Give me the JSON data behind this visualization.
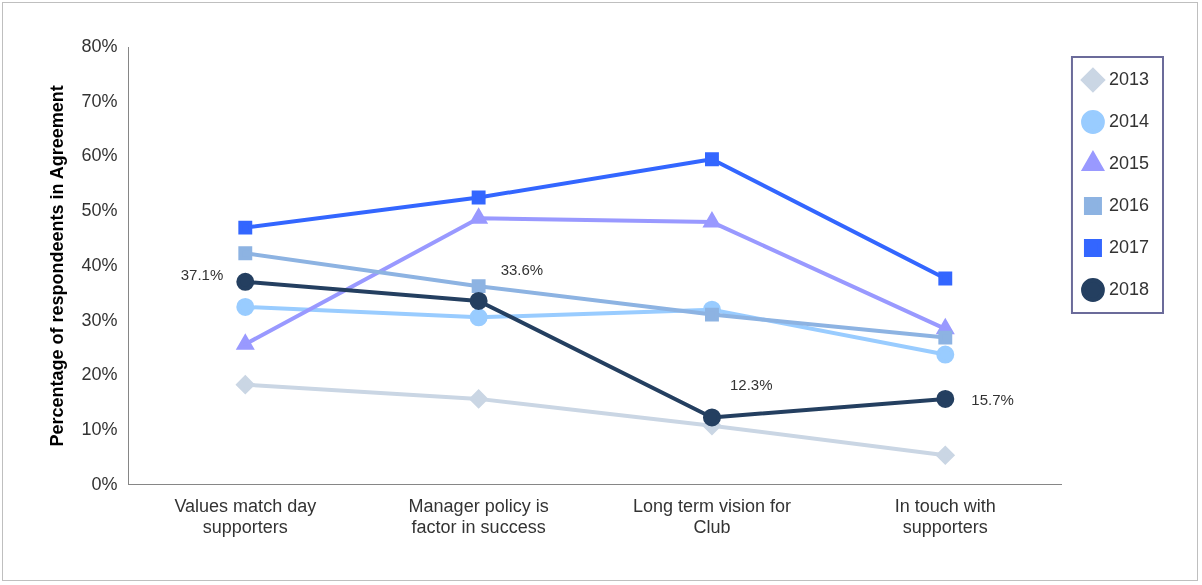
{
  "chart_data": {
    "type": "line",
    "ylabel": "Percentage of respondeents in Agreement",
    "categories": [
      "Values match day supporters",
      "Manager policy is factor in success",
      "Long term vision for Club",
      "In touch with supporters"
    ],
    "ylim": [
      0,
      80
    ],
    "yticks": [
      {
        "value": 0,
        "label": "0%"
      },
      {
        "value": 10,
        "label": "10%"
      },
      {
        "value": 20,
        "label": "20%"
      },
      {
        "value": 30,
        "label": "30%"
      },
      {
        "value": 40,
        "label": "40%"
      },
      {
        "value": 50,
        "label": "50%"
      },
      {
        "value": 60,
        "label": "60%"
      },
      {
        "value": 70,
        "label": "70%"
      },
      {
        "value": 80,
        "label": "80%"
      }
    ],
    "grid": false,
    "legend": "right",
    "series": [
      {
        "name": "2013",
        "color": "#cad6e4",
        "marker": "diamond",
        "values": [
          18.3,
          15.7,
          10.8,
          5.4
        ]
      },
      {
        "name": "2014",
        "color": "#99ccff",
        "marker": "circle",
        "values": [
          32.5,
          30.6,
          32.0,
          23.8
        ]
      },
      {
        "name": "2015",
        "color": "#9999ff",
        "marker": "triangle",
        "values": [
          25.7,
          48.7,
          48.0,
          28.5
        ]
      },
      {
        "name": "2016",
        "color": "#8db3e2",
        "marker": "square",
        "values": [
          42.3,
          36.3,
          31.1,
          26.9
        ]
      },
      {
        "name": "2017",
        "color": "#3366ff",
        "marker": "square",
        "values": [
          47.0,
          52.5,
          59.5,
          37.7
        ]
      },
      {
        "name": "2018",
        "color": "#243f60",
        "marker": "circle",
        "values": [
          37.1,
          33.6,
          12.3,
          15.7
        ],
        "value_labels": [
          "37.1%",
          "33.6%",
          "12.3%",
          "15.7%"
        ]
      }
    ]
  }
}
